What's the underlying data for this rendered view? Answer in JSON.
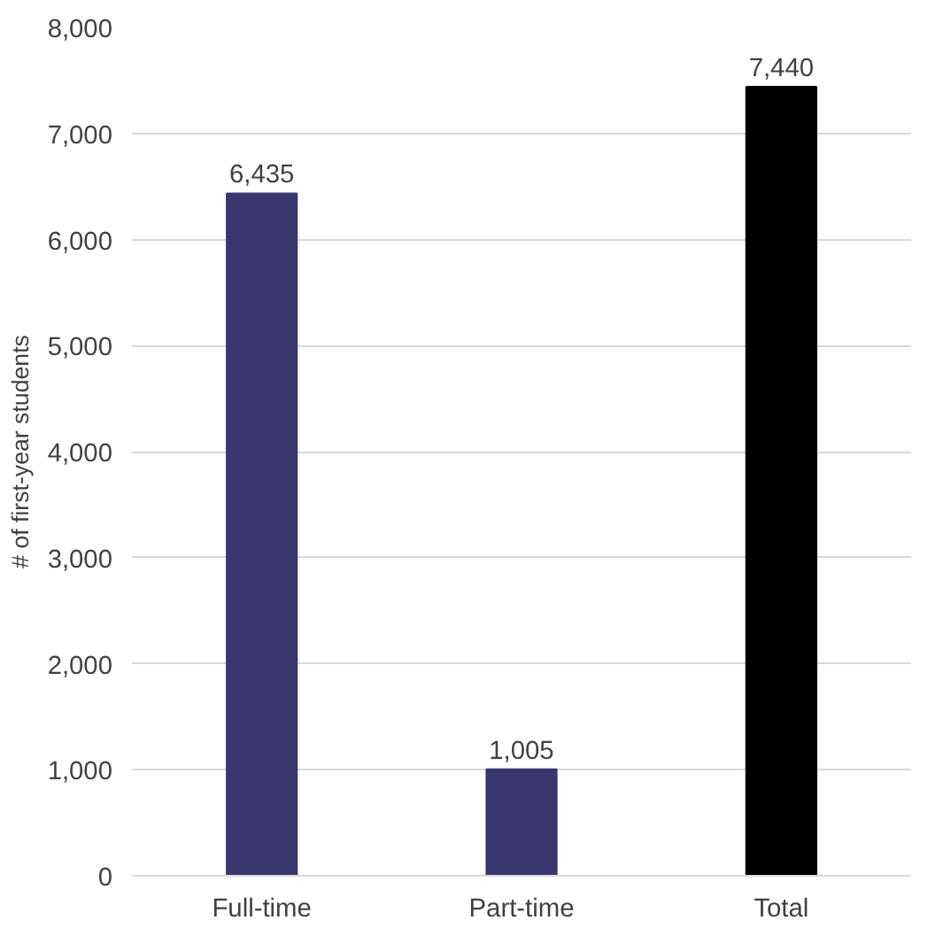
{
  "chart_data": {
    "type": "bar",
    "ylabel": "# of first-year students",
    "categories": [
      "Full-time",
      "Part-time",
      "Total"
    ],
    "values": [
      6435,
      1005,
      7440
    ],
    "colors": [
      "#3a3670",
      "#3a3670",
      "#000000"
    ],
    "ylim": [
      0,
      8000
    ],
    "yticks": [
      {
        "value": 0,
        "label": "0"
      },
      {
        "value": 1000,
        "label": "1,000"
      },
      {
        "value": 2000,
        "label": "2,000"
      },
      {
        "value": 3000,
        "label": "3,000"
      },
      {
        "value": 4000,
        "label": "4,000"
      },
      {
        "value": 5000,
        "label": "5,000"
      },
      {
        "value": 6000,
        "label": "6,000"
      },
      {
        "value": 7000,
        "label": "7,000"
      },
      {
        "value": 8000,
        "label": "8,000"
      }
    ],
    "grid": "y",
    "value_labels": [
      "6,435",
      "1,005",
      "7,440"
    ]
  }
}
